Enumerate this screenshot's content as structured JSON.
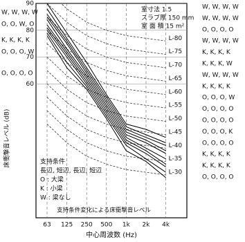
{
  "chart_data": {
    "type": "line",
    "x_label": "中心周波数 (Hz)",
    "y_label": "床衝撃音レベル (dB)",
    "categories": [
      "63",
      "125",
      "250",
      "500",
      "1k",
      "2k",
      "4k"
    ],
    "ylim": [
      10,
      90
    ],
    "yticks": [
      60,
      70,
      80,
      90
    ],
    "grid": true,
    "room_info": [
      "室寸法 1.5",
      "スラブ厚 150 mm",
      "室 面 積 15 m²"
    ],
    "conditions": [
      "支持条件",
      "長辺, 短辺, 長辺, 短辺",
      "O : 大梁",
      "K : 小梁",
      "W : 梁なし"
    ],
    "caption": "支持条件変化による床衝撃音レベル",
    "left_labels": [
      "W, W, W, W",
      "O, O, W, O",
      "K, K, K, K",
      "O, O, O, W",
      "O, O, O, O"
    ],
    "right_labels": [
      "W, W, W, W",
      "W, W, W, W",
      "O, O, O, O",
      "W, W, W, W",
      "K, K, K, K",
      "K, K, K, W",
      "W, W, W, W",
      "K, K, K, K",
      "O, O, O, W",
      "O, O, O, O",
      "O, O, O, O",
      "O, O, O, K",
      "O, O, O, O",
      "K, K, K, K",
      "K, K, K, K",
      "O, O, O, O"
    ],
    "series": [
      {
        "color": "#000000",
        "values": [
          90,
          79,
          68,
          56,
          45,
          43,
          40
        ]
      },
      {
        "color": "#000000",
        "values": [
          88,
          77,
          66,
          55,
          44,
          41,
          38
        ]
      },
      {
        "color": "#000000",
        "values": [
          86,
          76,
          65,
          54,
          43,
          40,
          37
        ]
      },
      {
        "color": "#000000",
        "values": [
          85,
          75,
          64,
          53,
          42,
          39,
          35
        ]
      },
      {
        "color": "#000000",
        "values": [
          84,
          73,
          63,
          52,
          41,
          38,
          34
        ]
      },
      {
        "color": "#000000",
        "values": [
          82,
          72,
          62,
          51,
          40,
          36,
          32
        ]
      },
      {
        "color": "#000000",
        "values": [
          81,
          71,
          61,
          50,
          39,
          35,
          30
        ]
      },
      {
        "color": "#000000",
        "values": [
          80,
          70,
          60,
          49,
          38,
          34,
          29
        ]
      },
      {
        "color": "#000000",
        "values": [
          79,
          68,
          59,
          48,
          37,
          32,
          27
        ]
      },
      {
        "color": "#000000",
        "values": [
          78,
          66,
          58,
          47,
          35,
          31,
          25
        ]
      }
    ],
    "reference_curves": [
      {
        "name": "L-80",
        "values": [
          95,
          88,
          83,
          80,
          78,
          77,
          76
        ]
      },
      {
        "name": "L-75",
        "values": [
          90,
          83,
          78,
          75,
          73,
          72,
          71
        ]
      },
      {
        "name": "L-70",
        "values": [
          85,
          78,
          73,
          70,
          68,
          67,
          66
        ]
      },
      {
        "name": "L-65",
        "values": [
          80,
          73,
          68,
          65,
          63,
          62,
          61
        ]
      },
      {
        "name": "L-60",
        "values": [
          75,
          68,
          63,
          60,
          58,
          57,
          56
        ]
      },
      {
        "name": "L-55",
        "values": [
          70,
          63,
          58,
          55,
          53,
          52,
          51
        ]
      },
      {
        "name": "L-50",
        "values": [
          65,
          58,
          53,
          50,
          48,
          47,
          46
        ]
      },
      {
        "name": "L-45",
        "values": [
          60,
          53,
          48,
          45,
          43,
          42,
          41
        ]
      },
      {
        "name": "L-40",
        "values": [
          55,
          48,
          43,
          40,
          38,
          37,
          36
        ]
      },
      {
        "name": "L-35",
        "values": [
          50,
          43,
          38,
          35,
          33,
          32,
          31
        ]
      },
      {
        "name": "L-30",
        "values": [
          45,
          38,
          33,
          30,
          28,
          27,
          26
        ]
      }
    ]
  }
}
